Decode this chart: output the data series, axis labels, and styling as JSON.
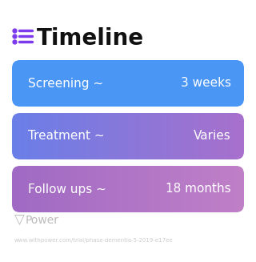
{
  "title": "Timeline",
  "title_fontsize": 20,
  "title_color": "#111111",
  "title_icon_color_dot": "#7c3aed",
  "title_icon_color_line": "#7c3aed",
  "background_color": "#ffffff",
  "rows": [
    {
      "label": "Screening ~",
      "value": "3 weeks",
      "color_left": "#4a96f5",
      "color_right": "#4a96f5"
    },
    {
      "label": "Treatment ~",
      "value": "Varies",
      "color_left": "#6a7fe8",
      "color_right": "#a870cc"
    },
    {
      "label": "Follow ups ~",
      "value": "18 months",
      "color_left": "#a06ac4",
      "color_right": "#c080c8"
    }
  ],
  "watermark_text": "Power",
  "watermark_color": "#bbbbbb",
  "url_text": "www.withpower.com/trial/phase-dementia-5-2019-e17ee",
  "url_color": "#cccccc",
  "label_fontsize": 11,
  "value_fontsize": 11,
  "text_color": "#ffffff"
}
